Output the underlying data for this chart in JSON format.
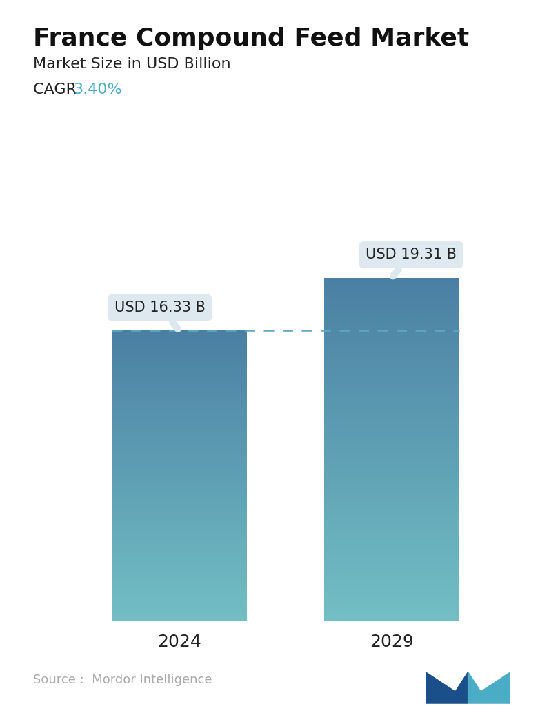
{
  "title": "France Compound Feed Market",
  "subtitle": "Market Size in USD Billion",
  "cagr_label": "CAGR  ",
  "cagr_value": "3.40%",
  "cagr_color": "#4BACC6",
  "categories": [
    "2024",
    "2029"
  ],
  "values": [
    16.33,
    19.31
  ],
  "bar_labels": [
    "USD 16.33 B",
    "USD 19.31 B"
  ],
  "bar_color_top": "#4A7FA3",
  "bar_color_bottom": "#72BEC4",
  "dashed_line_color": "#5BAABF",
  "source_text": "Source :  Mordor Intelligence",
  "source_color": "#AAAAAA",
  "background_color": "#FFFFFF",
  "title_fontsize": 26,
  "subtitle_fontsize": 16,
  "cagr_fontsize": 16,
  "label_fontsize": 15,
  "tick_fontsize": 18,
  "source_fontsize": 13,
  "annotation_bg": "#DDE8EF",
  "logo_dark": "#1A4F8A",
  "logo_teal": "#4BACC6"
}
